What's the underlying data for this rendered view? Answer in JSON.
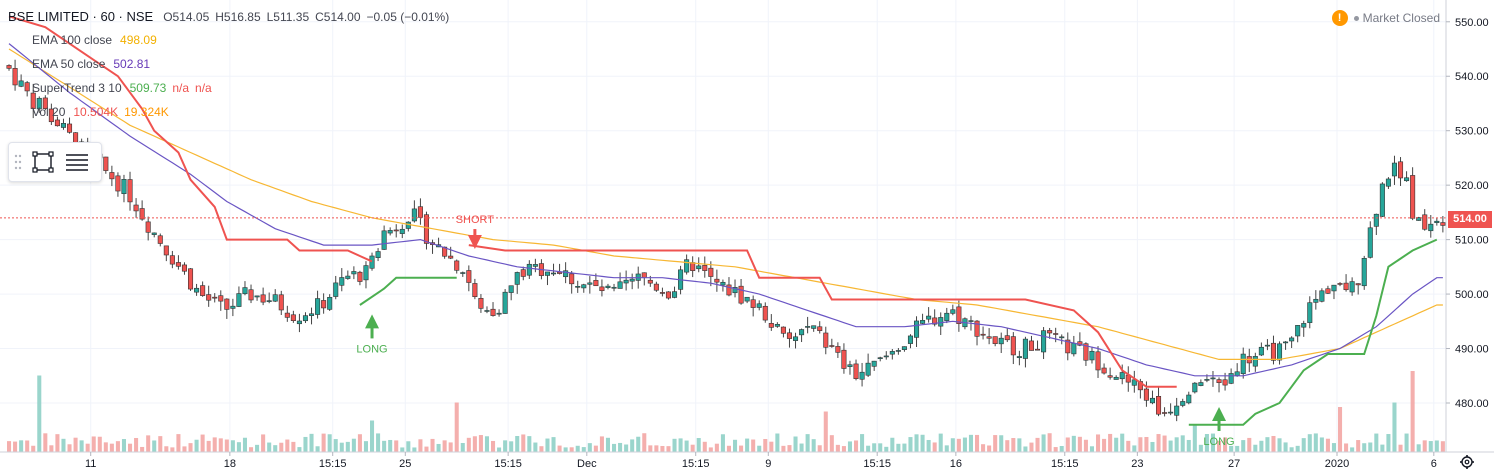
{
  "header": {
    "symbol": "BSE LIMITED · 60 · NSE",
    "open": "O514.05",
    "high": "H516.85",
    "low": "L511.35",
    "close": "C514.00",
    "change": "−0.05 (−0.01%)"
  },
  "indicators": [
    {
      "label": "EMA 100 close",
      "value": "498.09",
      "color": "#f2b000"
    },
    {
      "label": "EMA 50 close",
      "value": "502.81",
      "color": "#673ab7"
    },
    {
      "label": "SuperTrend 3 10",
      "value": "509.73",
      "extra1": "n/a",
      "extra2": "n/a",
      "color": "#4caf50",
      "extra_color": "#ef5350"
    },
    {
      "label": "Vol 20",
      "value": "10.504K",
      "extra1": "19.324K",
      "color": "#ef5350",
      "extra_color": "#ff9800"
    }
  ],
  "market_status": "Market Closed",
  "market_icon": "!",
  "last_price_label": "514.00",
  "icons": {
    "draw_rect": "rectangle-tool-icon",
    "menu": "lines-menu-icon",
    "settings": "gear-icon",
    "grip": "drag-grip-icon"
  },
  "colors": {
    "up": "#26a69a",
    "down": "#ef5350",
    "ema100": "#f7b733",
    "ema50": "#6a55c4",
    "supertrend_up": "#4caf50",
    "supertrend_down": "#ef5350"
  },
  "chart_data": {
    "type": "candlestick",
    "y_axis": {
      "min": 471,
      "max": 554,
      "ticks": [
        480,
        490,
        500,
        510,
        520,
        530,
        540,
        550
      ]
    },
    "x_axis": {
      "labels": [
        "11",
        "18",
        "15:15",
        "25",
        "15:15",
        "Dec",
        "15:15",
        "9",
        "15:15",
        "16",
        "15:15",
        "23",
        "27",
        "2020",
        "6"
      ],
      "label_at_bar": [
        14,
        37,
        54,
        66,
        83,
        96,
        114,
        126,
        144,
        157,
        175,
        187,
        203,
        220,
        236
      ]
    },
    "bar_count": 238,
    "last_price": 514.0,
    "annotations": [
      {
        "label": "LONG",
        "bar": 60,
        "price": 497
      },
      {
        "label": "SHORT",
        "bar": 77,
        "price": 509
      },
      {
        "label": "LONG",
        "bar": 200,
        "price": 480
      }
    ],
    "price_path": [
      [
        0,
        542
      ],
      [
        4,
        536
      ],
      [
        8,
        532
      ],
      [
        12,
        527
      ],
      [
        16,
        523
      ],
      [
        20,
        519
      ],
      [
        24,
        512
      ],
      [
        28,
        506
      ],
      [
        32,
        500
      ],
      [
        36,
        497
      ],
      [
        40,
        500
      ],
      [
        44,
        499
      ],
      [
        48,
        496
      ],
      [
        52,
        498
      ],
      [
        56,
        503
      ],
      [
        60,
        504
      ],
      [
        62,
        511
      ],
      [
        64,
        512
      ],
      [
        67,
        515
      ],
      [
        70,
        510
      ],
      [
        73,
        507
      ],
      [
        76,
        504
      ],
      [
        78,
        497
      ],
      [
        81,
        497
      ],
      [
        85,
        504
      ],
      [
        90,
        505
      ],
      [
        95,
        502
      ],
      [
        100,
        500
      ],
      [
        105,
        503
      ],
      [
        110,
        500
      ],
      [
        113,
        506
      ],
      [
        117,
        502
      ],
      [
        121,
        500
      ],
      [
        125,
        497
      ],
      [
        129,
        491
      ],
      [
        133,
        494
      ],
      [
        137,
        489
      ],
      [
        140,
        485
      ],
      [
        144,
        487
      ],
      [
        148,
        491
      ],
      [
        152,
        495
      ],
      [
        156,
        497
      ],
      [
        160,
        494
      ],
      [
        164,
        491
      ],
      [
        168,
        490
      ],
      [
        172,
        492
      ],
      [
        176,
        490
      ],
      [
        180,
        488
      ],
      [
        184,
        485
      ],
      [
        188,
        482
      ],
      [
        191,
        478
      ],
      [
        194,
        481
      ],
      [
        197,
        485
      ],
      [
        201,
        483
      ],
      [
        204,
        488
      ],
      [
        208,
        489
      ],
      [
        212,
        490
      ],
      [
        215,
        497
      ],
      [
        219,
        502
      ],
      [
        223,
        501
      ],
      [
        226,
        514
      ],
      [
        228,
        522
      ],
      [
        231,
        523
      ],
      [
        233,
        513
      ],
      [
        236,
        514
      ]
    ],
    "ema100_path": [
      [
        0,
        545
      ],
      [
        10,
        538
      ],
      [
        20,
        531
      ],
      [
        30,
        526
      ],
      [
        40,
        521
      ],
      [
        50,
        517
      ],
      [
        60,
        514
      ],
      [
        70,
        512
      ],
      [
        80,
        510
      ],
      [
        90,
        509
      ],
      [
        100,
        507
      ],
      [
        110,
        506
      ],
      [
        120,
        505
      ],
      [
        130,
        503
      ],
      [
        140,
        501
      ],
      [
        150,
        499
      ],
      [
        160,
        498
      ],
      [
        170,
        496
      ],
      [
        180,
        494
      ],
      [
        190,
        491
      ],
      [
        200,
        488
      ],
      [
        210,
        488
      ],
      [
        220,
        490
      ],
      [
        228,
        494
      ],
      [
        236,
        498
      ]
    ],
    "ema50_path": [
      [
        0,
        546
      ],
      [
        10,
        537
      ],
      [
        20,
        529
      ],
      [
        30,
        522
      ],
      [
        36,
        517
      ],
      [
        44,
        512
      ],
      [
        52,
        509
      ],
      [
        60,
        509
      ],
      [
        68,
        510
      ],
      [
        76,
        507
      ],
      [
        84,
        505
      ],
      [
        92,
        504
      ],
      [
        100,
        503
      ],
      [
        108,
        503
      ],
      [
        116,
        502
      ],
      [
        124,
        500
      ],
      [
        132,
        497
      ],
      [
        140,
        494
      ],
      [
        148,
        494
      ],
      [
        156,
        495
      ],
      [
        164,
        494
      ],
      [
        172,
        492
      ],
      [
        180,
        490
      ],
      [
        188,
        487
      ],
      [
        196,
        485
      ],
      [
        204,
        485
      ],
      [
        212,
        487
      ],
      [
        220,
        490
      ],
      [
        226,
        494
      ],
      [
        232,
        500
      ],
      [
        236,
        503
      ]
    ],
    "supertrend_down_segments": [
      [
        [
          0,
          551
        ],
        [
          6,
          549
        ],
        [
          10,
          546
        ],
        [
          14,
          543
        ],
        [
          18,
          540
        ],
        [
          22,
          534
        ],
        [
          24,
          530
        ],
        [
          28,
          526
        ],
        [
          30,
          521
        ],
        [
          34,
          516
        ],
        [
          36,
          510
        ],
        [
          46,
          510
        ],
        [
          48,
          508
        ],
        [
          56,
          508
        ],
        [
          58,
          507
        ],
        [
          60,
          506
        ]
      ],
      [
        [
          76,
          509
        ],
        [
          82,
          508
        ],
        [
          122,
          508
        ],
        [
          124,
          503
        ],
        [
          134,
          503
        ],
        [
          136,
          499
        ],
        [
          168,
          499
        ],
        [
          176,
          497
        ],
        [
          180,
          493
        ],
        [
          184,
          486
        ],
        [
          188,
          483
        ],
        [
          193,
          483
        ]
      ]
    ],
    "supertrend_up_segments": [
      [
        [
          58,
          498
        ],
        [
          62,
          501
        ],
        [
          64,
          503
        ],
        [
          74,
          503
        ]
      ],
      [
        [
          195,
          476
        ],
        [
          204,
          476
        ],
        [
          206,
          478
        ],
        [
          210,
          480
        ],
        [
          212,
          483
        ],
        [
          214,
          486
        ],
        [
          218,
          489
        ],
        [
          224,
          489
        ],
        [
          226,
          496
        ],
        [
          228,
          505
        ],
        [
          232,
          508
        ],
        [
          236,
          510
        ]
      ]
    ],
    "volume_spikes": [
      [
        5,
        0.85
      ],
      [
        74,
        0.55
      ],
      [
        60,
        0.35
      ],
      [
        135,
        0.45
      ],
      [
        220,
        0.5
      ],
      [
        229,
        0.55
      ],
      [
        232,
        0.9
      ],
      [
        196,
        0.3
      ]
    ]
  }
}
